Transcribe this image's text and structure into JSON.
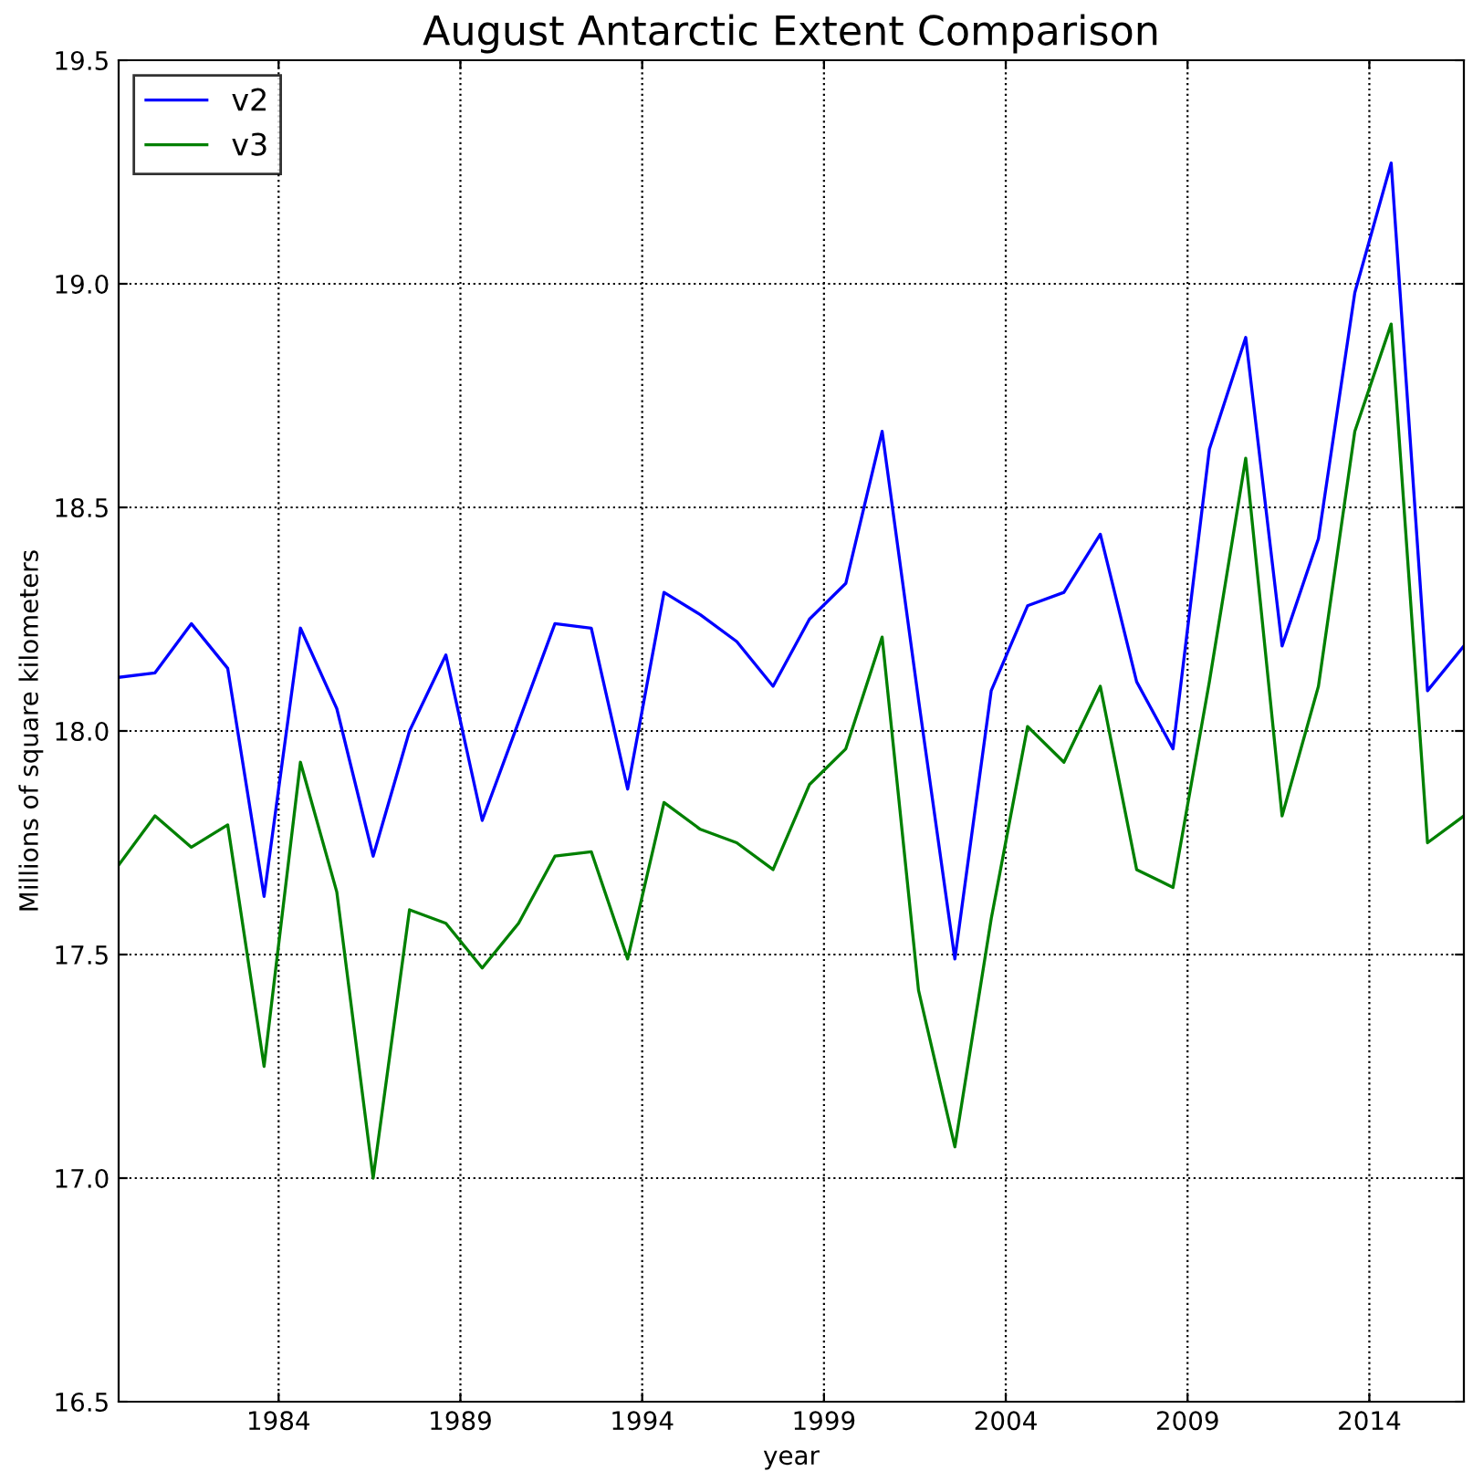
{
  "chart_data": {
    "type": "line",
    "title": "August Antarctic Extent Comparison",
    "xlabel": "year",
    "ylabel": "Millions of square kilometers",
    "x": [
      1979.6,
      1980.6,
      1981.6,
      1982.6,
      1983.6,
      1984.6,
      1985.6,
      1986.6,
      1987.6,
      1988.6,
      1989.6,
      1990.6,
      1991.6,
      1992.6,
      1993.6,
      1994.6,
      1995.6,
      1996.6,
      1997.6,
      1998.6,
      1999.6,
      2000.6,
      2001.6,
      2002.6,
      2003.6,
      2004.6,
      2005.6,
      2006.6,
      2007.6,
      2008.6,
      2009.6,
      2010.6,
      2011.6,
      2012.6,
      2013.6,
      2014.6,
      2015.6,
      2016.6
    ],
    "series": [
      {
        "name": "v2",
        "color": "#0000ff",
        "values": [
          18.12,
          18.13,
          18.24,
          18.14,
          17.63,
          18.23,
          18.05,
          17.72,
          18.0,
          18.17,
          17.8,
          18.02,
          18.24,
          18.23,
          17.87,
          18.31,
          18.26,
          18.2,
          18.1,
          18.25,
          18.33,
          18.67,
          18.07,
          17.49,
          18.09,
          18.28,
          18.31,
          18.44,
          18.11,
          17.96,
          18.63,
          18.88,
          18.19,
          18.43,
          18.98,
          19.27,
          18.09,
          18.19
        ]
      },
      {
        "name": "v3",
        "color": "#008000",
        "values": [
          17.7,
          17.81,
          17.74,
          17.79,
          17.25,
          17.93,
          17.64,
          17.0,
          17.6,
          17.57,
          17.47,
          17.57,
          17.72,
          17.73,
          17.49,
          17.84,
          17.78,
          17.75,
          17.69,
          17.88,
          17.96,
          18.21,
          17.42,
          17.07,
          17.58,
          18.01,
          17.93,
          18.1,
          17.69,
          17.65,
          18.11,
          18.61,
          17.81,
          18.1,
          18.67,
          18.91,
          17.75,
          17.81
        ]
      }
    ],
    "xlim": [
      1979.6,
      2016.6
    ],
    "xticks": [
      1984,
      1989,
      1994,
      1999,
      2004,
      2009,
      2014
    ],
    "ylim": [
      16.5,
      19.5
    ],
    "yticks": [
      {
        "value": 16.5,
        "label": "16.5"
      },
      {
        "value": 17.0,
        "label": "17.0"
      },
      {
        "value": 17.5,
        "label": "17.5"
      },
      {
        "value": 18.0,
        "label": "18.0"
      },
      {
        "value": 18.5,
        "label": "18.5"
      },
      {
        "value": 19.0,
        "label": "19.0"
      },
      {
        "value": 19.5,
        "label": "19.5"
      }
    ],
    "grid": true,
    "legend": "top left",
    "marker": "none",
    "line_style": "solid"
  }
}
